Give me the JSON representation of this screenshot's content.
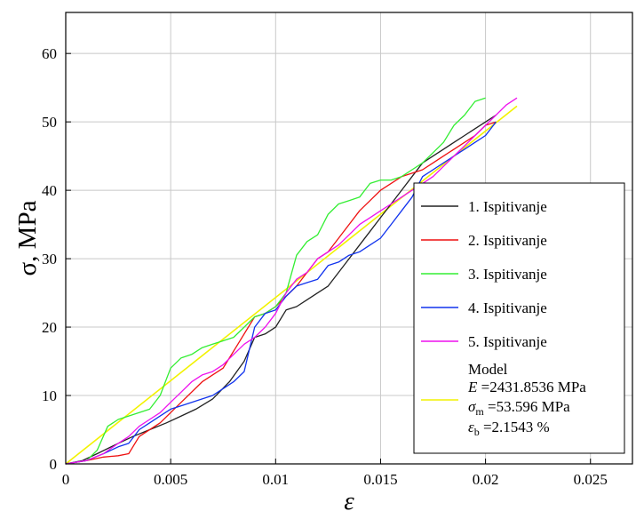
{
  "chart_data": {
    "type": "line",
    "xlabel": "ε",
    "ylabel": "σ, MPa",
    "xlim": [
      0,
      0.027
    ],
    "ylim": [
      0,
      66
    ],
    "grid": true,
    "legend_placement": "bottom-right",
    "x_ticks": [
      0,
      0.005,
      0.01,
      0.015,
      0.02,
      0.025
    ],
    "x_tick_labels": [
      "0",
      "0.005",
      "0.01",
      "0.015",
      "0.02",
      "0.025"
    ],
    "y_ticks": [
      0,
      10,
      20,
      30,
      40,
      50,
      60
    ],
    "y_tick_labels": [
      "0",
      "10",
      "20",
      "30",
      "40",
      "50",
      "60"
    ],
    "series": [
      {
        "name": "1. Ispitivanje",
        "color": "#222222",
        "x": [
          0,
          0.0008,
          0.0015,
          0.0025,
          0.0032,
          0.004,
          0.0048,
          0.0055,
          0.0062,
          0.007,
          0.0078,
          0.0085,
          0.009,
          0.0095,
          0.01,
          0.0105,
          0.011,
          0.0115,
          0.012,
          0.0125,
          0.013,
          0.0135,
          0.014,
          0.0145,
          0.015,
          0.0155,
          0.016,
          0.0165,
          0.017,
          0.0175,
          0.018,
          0.0185,
          0.019,
          0.0195,
          0.02,
          0.0205
        ],
        "y": [
          0,
          0.5,
          1.5,
          3,
          4,
          5,
          6,
          7,
          8,
          9.5,
          12,
          15,
          18.5,
          19,
          20,
          22.5,
          23,
          24,
          25,
          26,
          28,
          30,
          32,
          34,
          36,
          38,
          40,
          42,
          44,
          45,
          46,
          47,
          48,
          49,
          50,
          51
        ]
      },
      {
        "name": "2. Ispitivanje",
        "color": "#ee1111",
        "x": [
          0,
          0.001,
          0.0018,
          0.0025,
          0.003,
          0.0035,
          0.0045,
          0.0055,
          0.0065,
          0.0075,
          0.0082,
          0.009,
          0.0095,
          0.01,
          0.0105,
          0.011,
          0.0115,
          0.012,
          0.0125,
          0.013,
          0.0135,
          0.014,
          0.0145,
          0.015,
          0.0155,
          0.016,
          0.0165,
          0.017,
          0.0175,
          0.018,
          0.0185,
          0.019,
          0.0195,
          0.02,
          0.0205
        ],
        "y": [
          0,
          0.5,
          1,
          1.2,
          1.5,
          4,
          6,
          9,
          12,
          14,
          17.5,
          21.5,
          22,
          23,
          24.5,
          26,
          28,
          30,
          31,
          33,
          35,
          37,
          38.5,
          40,
          41,
          42,
          42.5,
          43,
          44,
          45,
          46,
          47,
          48,
          49.5,
          50
        ]
      },
      {
        "name": "3. Ispitivanje",
        "color": "#33ee33",
        "x": [
          0,
          0.001,
          0.0015,
          0.002,
          0.0025,
          0.003,
          0.0035,
          0.004,
          0.0045,
          0.005,
          0.0055,
          0.006,
          0.0065,
          0.007,
          0.0075,
          0.008,
          0.0085,
          0.009,
          0.0095,
          0.01,
          0.0105,
          0.011,
          0.0115,
          0.012,
          0.0125,
          0.013,
          0.0135,
          0.014,
          0.0145,
          0.015,
          0.0155,
          0.016,
          0.0165,
          0.017,
          0.0175,
          0.018,
          0.0185,
          0.019,
          0.0195,
          0.02
        ],
        "y": [
          0,
          0.5,
          2,
          5.5,
          6.5,
          7,
          7.5,
          8,
          10,
          14,
          15.5,
          16,
          17,
          17.5,
          18,
          18.5,
          20,
          21.5,
          22,
          23,
          25,
          30.5,
          32.5,
          33.5,
          36.5,
          38,
          38.5,
          39,
          41,
          41.5,
          41.5,
          42,
          43,
          44,
          45.5,
          47,
          49.5,
          51,
          53,
          53.5
        ]
      },
      {
        "name": "4. Ispitivanje",
        "color": "#1133ee",
        "x": [
          0,
          0.001,
          0.0018,
          0.0025,
          0.003,
          0.0035,
          0.004,
          0.0045,
          0.005,
          0.0055,
          0.006,
          0.0065,
          0.007,
          0.0075,
          0.008,
          0.0085,
          0.009,
          0.0095,
          0.01,
          0.0105,
          0.011,
          0.0115,
          0.012,
          0.0125,
          0.013,
          0.0135,
          0.014,
          0.0145,
          0.015,
          0.0155,
          0.016,
          0.0165,
          0.017,
          0.0175,
          0.018,
          0.0185,
          0.019,
          0.0195,
          0.02,
          0.0205
        ],
        "y": [
          0,
          0.5,
          1.5,
          2.5,
          3,
          5,
          6,
          7,
          8,
          8.5,
          9,
          9.5,
          10,
          11,
          12,
          13.5,
          20,
          22,
          22.5,
          24.5,
          26,
          26.5,
          27,
          29,
          29.5,
          30.5,
          31,
          32,
          33,
          35,
          37,
          39,
          42,
          43,
          44,
          45,
          46,
          47,
          48,
          50
        ]
      },
      {
        "name": "5. Ispitivanje",
        "color": "#ee11ee",
        "x": [
          0,
          0.001,
          0.0018,
          0.0025,
          0.003,
          0.0035,
          0.004,
          0.0045,
          0.005,
          0.0055,
          0.006,
          0.0065,
          0.007,
          0.0075,
          0.008,
          0.0085,
          0.009,
          0.0095,
          0.01,
          0.0105,
          0.011,
          0.0115,
          0.012,
          0.0125,
          0.013,
          0.0135,
          0.014,
          0.0145,
          0.015,
          0.0155,
          0.016,
          0.0165,
          0.017,
          0.0175,
          0.018,
          0.0185,
          0.019,
          0.0195,
          0.02,
          0.0205,
          0.021,
          0.0215
        ],
        "y": [
          0,
          0.5,
          1.5,
          3,
          4,
          5.5,
          6.5,
          7.5,
          9,
          10.5,
          12,
          13,
          13.5,
          14.5,
          16,
          17.5,
          18.5,
          20,
          22,
          25,
          27,
          28,
          30,
          31,
          32,
          33.5,
          35,
          36,
          37,
          38,
          39,
          40,
          41,
          42,
          43.5,
          45,
          46.5,
          48,
          49.5,
          51,
          52.5,
          53.5
        ]
      },
      {
        "name": "Model",
        "color": "#f2f200",
        "x": [
          0,
          0.0215
        ],
        "y": [
          0,
          52.3
        ]
      }
    ],
    "model_legend": {
      "line1": "Model",
      "line2_symbol": "E",
      "line2_value": "=2431.8536 MPa",
      "line3_symbol": "σ",
      "line3_sub": "m",
      "line3_value": "=53.596 MPa",
      "line4_symbol": "ε",
      "line4_sub": "b",
      "line4_value": "=2.1543 %"
    }
  }
}
